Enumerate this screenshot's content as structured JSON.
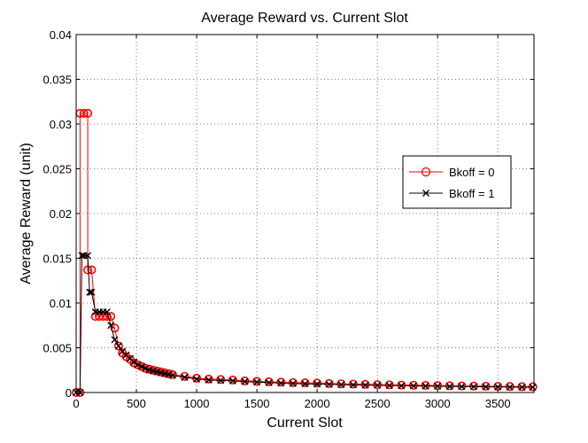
{
  "chart_data": {
    "type": "line",
    "title": "Average Reward vs. Current Slot",
    "xlabel": "Current Slot",
    "ylabel": "Average Reward (unit)",
    "xlim": [
      0,
      3800
    ],
    "ylim": [
      0,
      0.04
    ],
    "x_ticks": [
      0,
      500,
      1000,
      1500,
      2000,
      2500,
      3000,
      3500
    ],
    "y_ticks": [
      0,
      0.005,
      0.01,
      0.015,
      0.02,
      0.025,
      0.03,
      0.035,
      0.04
    ],
    "x_tick_labels": [
      "0",
      "500",
      "1000",
      "1500",
      "2000",
      "2500",
      "3000",
      "3500"
    ],
    "y_tick_labels": [
      "0",
      "0.005",
      "0.01",
      "0.015",
      "0.02",
      "0.025",
      "0.03",
      "0.035",
      "0.04"
    ],
    "grid": true,
    "legend_position": "right",
    "series": [
      {
        "name": "Bkoff = 0",
        "color": "#ff0000",
        "marker": "circle",
        "x": [
          0,
          32,
          32,
          64,
          96,
          96,
          128,
          160,
          192,
          224,
          256,
          288,
          320,
          352,
          384,
          416,
          448,
          480,
          512,
          544,
          576,
          608,
          640,
          672,
          704,
          736,
          768,
          800,
          900,
          1000,
          1100,
          1200,
          1300,
          1400,
          1500,
          1600,
          1700,
          1800,
          1900,
          2000,
          2100,
          2200,
          2300,
          2400,
          2500,
          2600,
          2700,
          2800,
          2900,
          3000,
          3100,
          3200,
          3300,
          3400,
          3500,
          3600,
          3700,
          3790
        ],
        "y": [
          0,
          0,
          0.0312,
          0.0312,
          0.0312,
          0.0137,
          0.0137,
          0.0085,
          0.0085,
          0.0085,
          0.0085,
          0.0085,
          0.0072,
          0.0052,
          0.0044,
          0.004,
          0.0037,
          0.0033,
          0.0031,
          0.0029,
          0.0027,
          0.0026,
          0.0025,
          0.0024,
          0.0023,
          0.0022,
          0.0021,
          0.002,
          0.0018,
          0.0016,
          0.0015,
          0.00145,
          0.0014,
          0.0013,
          0.00125,
          0.0012,
          0.00115,
          0.0011,
          0.00108,
          0.00105,
          0.001,
          0.00097,
          0.00094,
          0.00091,
          0.00088,
          0.00085,
          0.00083,
          0.00081,
          0.00079,
          0.00077,
          0.00075,
          0.00073,
          0.00072,
          0.0007,
          0.00068,
          0.00067,
          0.00065,
          0.00064
        ]
      },
      {
        "name": "Bkoff = 1",
        "color": "#000000",
        "marker": "x",
        "x": [
          0,
          32,
          48,
          64,
          96,
          112,
          128,
          160,
          192,
          224,
          256,
          288,
          320,
          352,
          384,
          416,
          448,
          480,
          512,
          544,
          576,
          608,
          640,
          672,
          704,
          736,
          768,
          800,
          900,
          1000,
          1100,
          1200,
          1300,
          1400,
          1500,
          1600,
          1700,
          1800,
          1900,
          2000,
          2100,
          2200,
          2300,
          2400,
          2500,
          2600,
          2700,
          2800,
          2900,
          3000,
          3100,
          3200,
          3300,
          3400,
          3500,
          3600,
          3700,
          3790
        ],
        "y": [
          0,
          0,
          0.0153,
          0.0153,
          0.0153,
          0.0112,
          0.0112,
          0.009,
          0.009,
          0.009,
          0.009,
          0.0075,
          0.0059,
          0.0052,
          0.0046,
          0.0042,
          0.0038,
          0.0034,
          0.0031,
          0.0029,
          0.0027,
          0.0025,
          0.0024,
          0.0023,
          0.0022,
          0.0021,
          0.002,
          0.0019,
          0.0017,
          0.0015,
          0.0014,
          0.00135,
          0.0013,
          0.00122,
          0.00116,
          0.0011,
          0.00105,
          0.001,
          0.00097,
          0.00094,
          0.00091,
          0.00088,
          0.00085,
          0.00082,
          0.0008,
          0.00078,
          0.00076,
          0.00074,
          0.00072,
          0.0007,
          0.00068,
          0.00067,
          0.00065,
          0.00063,
          0.00062,
          0.0006,
          0.00059,
          0.00058
        ]
      }
    ]
  }
}
